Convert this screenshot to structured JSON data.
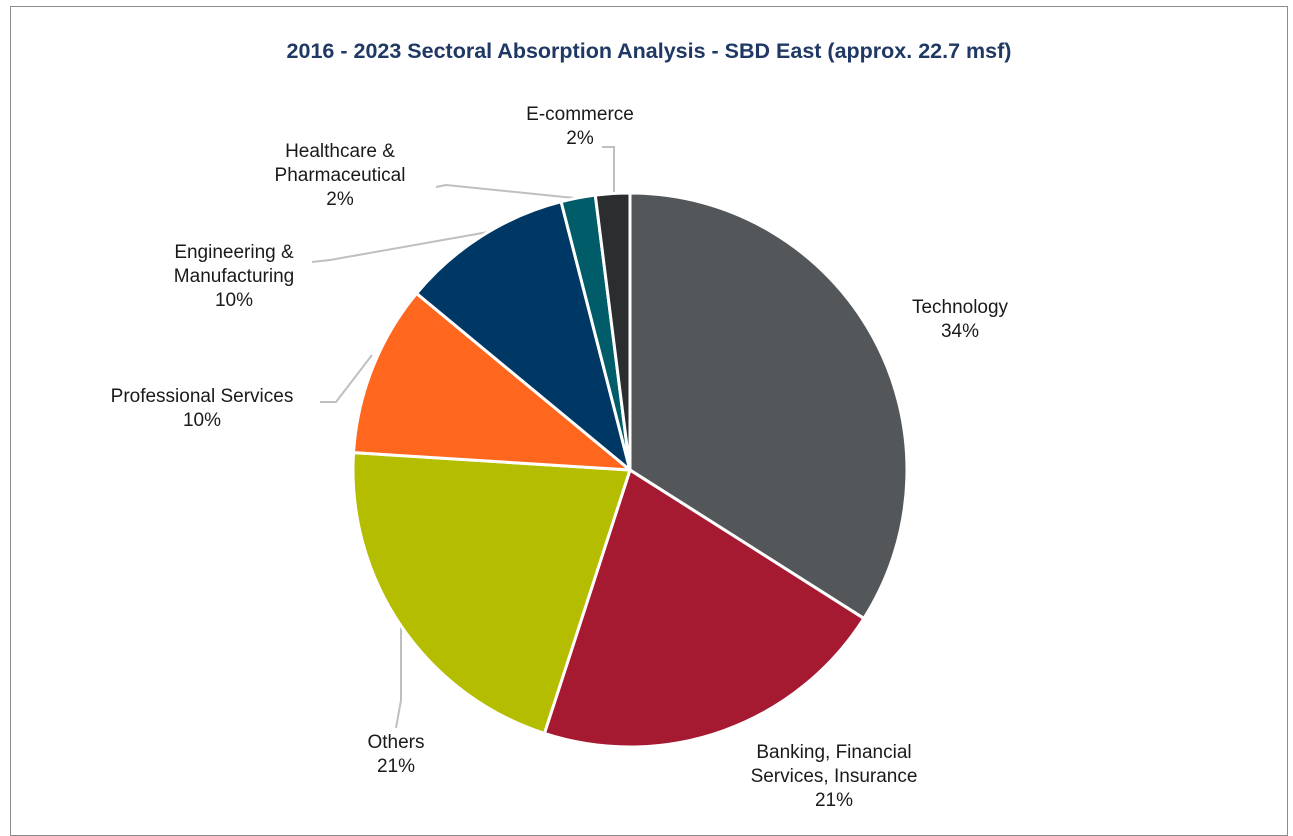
{
  "chart_data": {
    "type": "pie",
    "title": "2016 - 2023 Sectoral Absorption Analysis - SBD East (approx. 22.7 msf)",
    "slices": [
      {
        "name": "Technology",
        "value": 34,
        "label": "34%",
        "color": "#54575a"
      },
      {
        "name": "Banking, Financial Services, Insurance",
        "value": 21,
        "label": "21%",
        "color": "#a51931"
      },
      {
        "name": "Others",
        "value": 21,
        "label": "21%",
        "color": "#b5bd00"
      },
      {
        "name": "Professional Services",
        "value": 10,
        "label": "10%",
        "color": "#ff671f"
      },
      {
        "name": "Engineering & Manufacturing",
        "value": 10,
        "label": "10%",
        "color": "#003865"
      },
      {
        "name": "Healthcare & Pharmaceutical",
        "value": 2,
        "label": "2%",
        "color": "#005c69"
      },
      {
        "name": "E-commerce",
        "value": 2,
        "label": "2%",
        "color": "#2b2d2f"
      }
    ],
    "legend": "none",
    "start_angle_deg": 0,
    "direction": "clockwise"
  },
  "colors": {
    "title": "#1f3864",
    "frame": "#8c8c8c",
    "slice_border": "#ffffff",
    "leader_line": "#bfbfbf"
  }
}
